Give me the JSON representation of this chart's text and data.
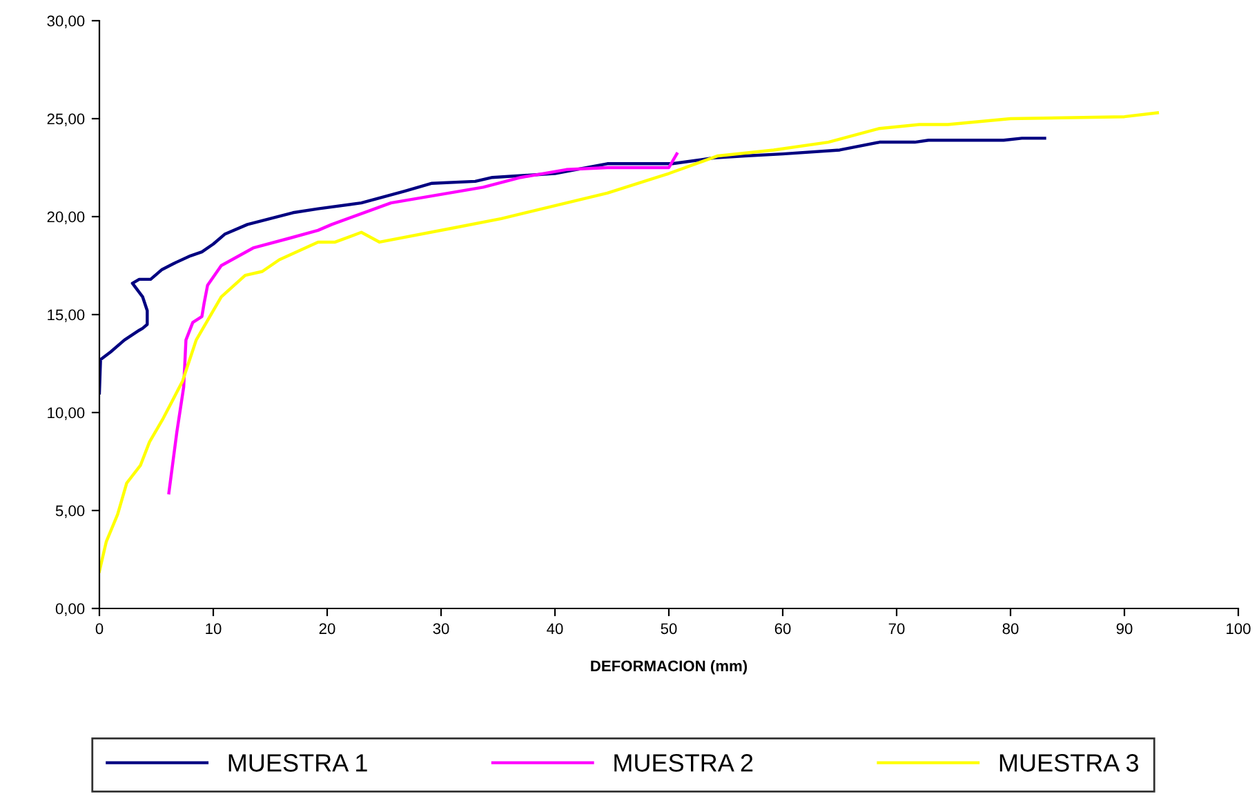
{
  "chart_data": {
    "type": "line",
    "xlabel": "DEFORMACION (mm)",
    "xlim": [
      0,
      100
    ],
    "xticks": [
      0,
      10,
      20,
      30,
      40,
      50,
      60,
      70,
      80,
      90,
      100
    ],
    "ylim": [
      0,
      30
    ],
    "yticks": [
      {
        "value": 0,
        "label": "0,00"
      },
      {
        "value": 5,
        "label": "5,00"
      },
      {
        "value": 10,
        "label": "10,00"
      },
      {
        "value": 15,
        "label": "15,00"
      },
      {
        "value": 20,
        "label": "20,00"
      },
      {
        "value": 25,
        "label": "25,00"
      },
      {
        "value": 30,
        "label": "30,00"
      }
    ],
    "grid": false,
    "legend": "bottom",
    "marker": "none",
    "line_style": "solid",
    "series": [
      {
        "name": "MUESTRA 1",
        "color": "#000080",
        "x": [
          0,
          0.1,
          1,
          2.2,
          3.5,
          3.8,
          4.2,
          4.2,
          3.8,
          2.9,
          3.5,
          4.5,
          5.5,
          6.5,
          8,
          9,
          10,
          11,
          13,
          15,
          17,
          19.2,
          23,
          26.8,
          29.2,
          33,
          34.5,
          40,
          44.6,
          50.3,
          54,
          56.7,
          60,
          65,
          68.5,
          71.6,
          72.8,
          79.4,
          81,
          83
        ],
        "values": [
          11,
          12.7,
          13.1,
          13.7,
          14.2,
          14.3,
          14.5,
          15.2,
          15.9,
          16.6,
          16.8,
          16.8,
          17.3,
          17.6,
          18,
          18.2,
          18.6,
          19.1,
          19.6,
          19.9,
          20.2,
          20.4,
          20.7,
          21.3,
          21.7,
          21.8,
          22,
          22.2,
          22.7,
          22.7,
          23,
          23.1,
          23.2,
          23.4,
          23.8,
          23.8,
          23.9,
          23.9,
          24,
          24
        ]
      },
      {
        "name": "MUESTRA 2",
        "color": "#ff00ff",
        "x": [
          6.1,
          6.8,
          7.4,
          7.6,
          8.2,
          9,
          9.2,
          9.5,
          10.7,
          13.5,
          16.7,
          19.2,
          20.4,
          25.6,
          33.7,
          37,
          41,
          44.6,
          50,
          50.7
        ],
        "values": [
          5.9,
          9,
          11.3,
          13.7,
          14.6,
          14.9,
          15.6,
          16.5,
          17.5,
          18.4,
          18.9,
          19.3,
          19.6,
          20.7,
          21.5,
          22,
          22.4,
          22.5,
          22.5,
          23.2
        ]
      },
      {
        "name": "MUESTRA 3",
        "color": "#ffff00",
        "x": [
          0,
          0.6,
          1.6,
          2.4,
          3.6,
          4.4,
          5.6,
          7.3,
          8.5,
          10.7,
          12.8,
          14.3,
          15.8,
          19.2,
          20.7,
          23,
          24.6,
          30.9,
          35.3,
          44.6,
          50,
          54.3,
          59.2,
          64,
          68.5,
          72,
          74.5,
          80,
          90,
          92.9
        ],
        "values": [
          1.9,
          3.4,
          4.8,
          6.4,
          7.3,
          8.5,
          9.7,
          11.6,
          13.7,
          15.9,
          17,
          17.2,
          17.8,
          18.7,
          18.7,
          19.2,
          18.7,
          19.4,
          19.9,
          21.2,
          22.2,
          23.1,
          23.4,
          23.8,
          24.5,
          24.7,
          24.7,
          25,
          25.1,
          25.3
        ]
      }
    ]
  }
}
